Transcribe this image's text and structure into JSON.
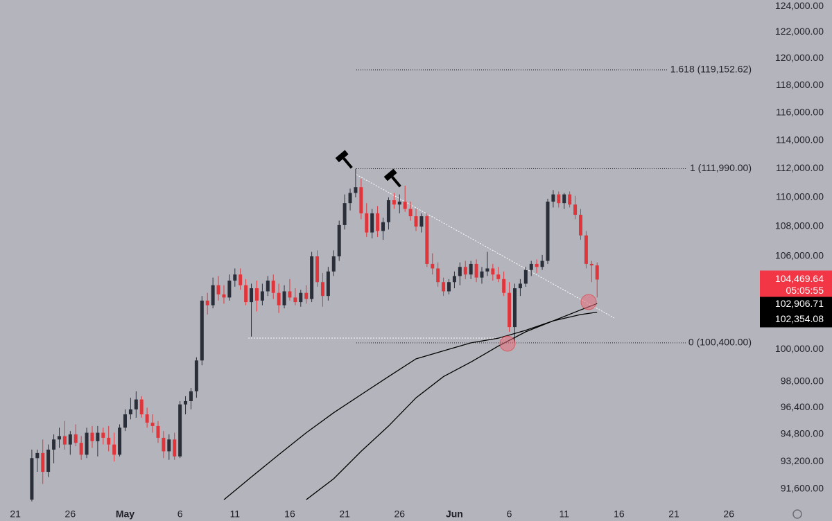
{
  "chart_data": {
    "type": "candlestick",
    "x": [
      0,
      1,
      2,
      3,
      4,
      5,
      6,
      7,
      8,
      9,
      10,
      11,
      12,
      13,
      14,
      15,
      16,
      17,
      18,
      19,
      20,
      21,
      22,
      23,
      24,
      25,
      26,
      27,
      28,
      29,
      30,
      31,
      32,
      33,
      34,
      35,
      36,
      37,
      38,
      39,
      40,
      41,
      42,
      43,
      44,
      45,
      46,
      47,
      48,
      49,
      50,
      51,
      52,
      53,
      54,
      55,
      56,
      57,
      58,
      59,
      60,
      61,
      62,
      63,
      64,
      65,
      66,
      67,
      68,
      69,
      70,
      71,
      72,
      73,
      74,
      75,
      76,
      77,
      78,
      79,
      80,
      81,
      82,
      83,
      84,
      85,
      86,
      87,
      88,
      89,
      90,
      91,
      92,
      93,
      94,
      95,
      96,
      97,
      98,
      99,
      100,
      101,
      102,
      103
    ],
    "ohlc": [
      [
        91000,
        93900,
        90900,
        93400
      ],
      [
        93400,
        93900,
        92600,
        93700
      ],
      [
        93700,
        94500,
        91900,
        92600
      ],
      [
        92600,
        94200,
        92300,
        93900
      ],
      [
        93900,
        94800,
        93100,
        94500
      ],
      [
        94500,
        95200,
        94000,
        94700
      ],
      [
        94700,
        95600,
        93900,
        94200
      ],
      [
        94200,
        95000,
        93600,
        94800
      ],
      [
        94800,
        95400,
        94100,
        94300
      ],
      [
        94300,
        94700,
        93300,
        93600
      ],
      [
        93600,
        95200,
        93400,
        94900
      ],
      [
        94900,
        95300,
        94000,
        94400
      ],
      [
        94400,
        95300,
        93500,
        94900
      ],
      [
        94900,
        95200,
        94200,
        94600
      ],
      [
        94600,
        95300,
        93800,
        94200
      ],
      [
        94200,
        94900,
        93200,
        93600
      ],
      [
        93600,
        95400,
        93500,
        95200
      ],
      [
        95200,
        96300,
        95000,
        96000
      ],
      [
        96000,
        97000,
        95700,
        96300
      ],
      [
        96300,
        97400,
        95800,
        96900
      ],
      [
        96900,
        97100,
        95800,
        96000
      ],
      [
        96000,
        96400,
        95200,
        95500
      ],
      [
        95500,
        96000,
        94900,
        95300
      ],
      [
        95300,
        95600,
        94300,
        94600
      ],
      [
        94600,
        95000,
        93400,
        93800
      ],
      [
        93800,
        94800,
        93300,
        94500
      ],
      [
        94500,
        94900,
        93300,
        93500
      ],
      [
        93500,
        96800,
        93400,
        96600
      ],
      [
        96600,
        97100,
        96000,
        96800
      ],
      [
        96800,
        97600,
        96300,
        97400
      ],
      [
        97400,
        99500,
        97000,
        99300
      ],
      [
        99300,
        103400,
        99000,
        103100
      ],
      [
        103100,
        103600,
        102200,
        102800
      ],
      [
        102800,
        104600,
        102600,
        104100
      ],
      [
        104100,
        104700,
        103100,
        103500
      ],
      [
        103500,
        104100,
        102900,
        103300
      ],
      [
        103300,
        104800,
        103100,
        104400
      ],
      [
        104400,
        105200,
        104000,
        104800
      ],
      [
        104800,
        105200,
        103800,
        104100
      ],
      [
        104100,
        104500,
        102800,
        103000
      ],
      [
        103000,
        104200,
        100800,
        103900
      ],
      [
        103900,
        104400,
        102400,
        103100
      ],
      [
        103100,
        104200,
        102800,
        103700
      ],
      [
        103700,
        104700,
        103400,
        104400
      ],
      [
        104400,
        104800,
        103200,
        103600
      ],
      [
        103600,
        104200,
        102300,
        102800
      ],
      [
        102800,
        104100,
        102600,
        103700
      ],
      [
        103700,
        104500,
        103100,
        103300
      ],
      [
        103300,
        103900,
        102800,
        103000
      ],
      [
        103000,
        103800,
        102700,
        103600
      ],
      [
        103600,
        104100,
        102900,
        103200
      ],
      [
        103200,
        106300,
        103000,
        106000
      ],
      [
        106000,
        106400,
        104000,
        104300
      ],
      [
        104300,
        104900,
        102700,
        103400
      ],
      [
        103400,
        105300,
        103100,
        105000
      ],
      [
        105000,
        106400,
        104700,
        106000
      ],
      [
        106000,
        108400,
        105700,
        108100
      ],
      [
        108100,
        110200,
        107800,
        109600
      ],
      [
        109600,
        110600,
        109100,
        110300
      ],
      [
        110300,
        111990,
        110000,
        110700
      ],
      [
        110700,
        111300,
        108500,
        108900
      ],
      [
        108900,
        109600,
        107300,
        107600
      ],
      [
        107600,
        109200,
        107200,
        108900
      ],
      [
        108900,
        109400,
        107300,
        107700
      ],
      [
        107700,
        108600,
        107100,
        108300
      ],
      [
        108300,
        110000,
        107800,
        109800
      ],
      [
        109800,
        110300,
        109200,
        109500
      ],
      [
        109500,
        110200,
        108900,
        109700
      ],
      [
        109700,
        110800,
        109000,
        109200
      ],
      [
        109200,
        109700,
        108400,
        108700
      ],
      [
        108700,
        109200,
        107700,
        108000
      ],
      [
        108000,
        108900,
        107600,
        108700
      ],
      [
        108700,
        108900,
        105300,
        105500
      ],
      [
        105500,
        106200,
        104800,
        105200
      ],
      [
        105200,
        105600,
        104000,
        104300
      ],
      [
        104300,
        104600,
        103400,
        103700
      ],
      [
        103700,
        104500,
        103500,
        104300
      ],
      [
        104300,
        105000,
        103900,
        104700
      ],
      [
        104700,
        105600,
        104100,
        105300
      ],
      [
        105300,
        105700,
        104500,
        104800
      ],
      [
        104800,
        105700,
        104500,
        105500
      ],
      [
        105500,
        105800,
        104300,
        104600
      ],
      [
        104600,
        105300,
        104200,
        105000
      ],
      [
        105000,
        106300,
        104700,
        105200
      ],
      [
        105200,
        105500,
        104400,
        104800
      ],
      [
        104800,
        105300,
        104300,
        104500
      ],
      [
        104500,
        105000,
        103400,
        103600
      ],
      [
        103600,
        104300,
        101100,
        101400
      ],
      [
        101400,
        104200,
        100400,
        103900
      ],
      [
        103900,
        104500,
        103400,
        104200
      ],
      [
        104200,
        105300,
        104000,
        105100
      ],
      [
        105100,
        105700,
        104700,
        105500
      ],
      [
        105500,
        105800,
        104900,
        105300
      ],
      [
        105300,
        106100,
        105100,
        105700
      ],
      [
        105700,
        109900,
        105500,
        109700
      ],
      [
        109700,
        110500,
        109300,
        110200
      ],
      [
        110200,
        110400,
        109300,
        109600
      ],
      [
        109600,
        110300,
        109200,
        110200
      ],
      [
        110200,
        110400,
        109300,
        109500
      ],
      [
        109500,
        110100,
        108500,
        108800
      ],
      [
        108800,
        109200,
        107100,
        107400
      ],
      [
        107400,
        107700,
        105200,
        105500
      ],
      [
        105500,
        105700,
        104300,
        105400
      ],
      [
        105400,
        105600,
        103300,
        104469.64
      ]
    ],
    "up_color": "#2a2e39",
    "down_color": "#e0353b",
    "series": [
      {
        "color": "#000000",
        "x": [
          35,
          40,
          45,
          50,
          55,
          60,
          65,
          70,
          75,
          80,
          85,
          90,
          95,
          100,
          103
        ],
        "values": [
          91000,
          92300,
          93600,
          94900,
          96100,
          97200,
          98300,
          99400,
          99900,
          100400,
          100700,
          101200,
          101800,
          102500,
          102906.71
        ],
        "value_labels": [
          null,
          null,
          null,
          null,
          null,
          null,
          null,
          null,
          null,
          null,
          null,
          null,
          null,
          null,
          "102,906.71"
        ]
      },
      {
        "color": "#000000",
        "x": [
          50,
          55,
          60,
          65,
          70,
          75,
          80,
          85,
          90,
          95,
          100,
          103
        ],
        "values": [
          91000,
          92200,
          93800,
          95300,
          97000,
          98300,
          99200,
          100200,
          101100,
          101800,
          102200,
          102354.08
        ],
        "value_labels": [
          null,
          null,
          null,
          null,
          null,
          null,
          null,
          null,
          null,
          null,
          null,
          "102,354.08"
        ]
      }
    ],
    "last_price": {
      "value": 104469.64,
      "label": "104,469.64"
    },
    "countdown": "05:05:55",
    "levels": [
      {
        "value": 119152.62,
        "label": "1.618 (119,152.62)"
      },
      {
        "value": 111990,
        "label": "1 (111,990.00)"
      },
      {
        "value": 100400,
        "label": "0 (100,400.00)"
      }
    ],
    "ylim": [
      90730,
      124490
    ],
    "log_scale": true,
    "yticks": [
      {
        "value": 91600,
        "label": "91,600.00"
      },
      {
        "value": 93200,
        "label": "93,200.00"
      },
      {
        "value": 94800,
        "label": "94,800.00"
      },
      {
        "value": 96400,
        "label": "96,400.00"
      },
      {
        "value": 98000,
        "label": "98,000.00"
      },
      {
        "value": 100000,
        "label": "100,000.00"
      },
      {
        "value": 106000,
        "label": "106,000.00"
      },
      {
        "value": 108000,
        "label": "108,000.00"
      },
      {
        "value": 110000,
        "label": "110,000.00"
      },
      {
        "value": 112000,
        "label": "112,000.00"
      },
      {
        "value": 114000,
        "label": "114,000.00"
      },
      {
        "value": 116000,
        "label": "116,000.00"
      },
      {
        "value": 118000,
        "label": "118,000.00"
      },
      {
        "value": 120000,
        "label": "120,000.00"
      },
      {
        "value": 122000,
        "label": "122,000.00"
      },
      {
        "value": 124000,
        "label": "124,000.00"
      }
    ],
    "xlim": [
      -5.8,
      131.9
    ],
    "xticks": [
      {
        "value": -3,
        "label": "21"
      },
      {
        "value": 7,
        "label": "26"
      },
      {
        "value": 17,
        "label": "May"
      },
      {
        "value": 27,
        "label": "6"
      },
      {
        "value": 37,
        "label": "11"
      },
      {
        "value": 47,
        "label": "16"
      },
      {
        "value": 57,
        "label": "21"
      },
      {
        "value": 67,
        "label": "26"
      },
      {
        "value": 77,
        "label": "Jun"
      },
      {
        "value": 87,
        "label": "6"
      },
      {
        "value": 97,
        "label": "11"
      },
      {
        "value": 107,
        "label": "16"
      },
      {
        "value": 117,
        "label": "21"
      },
      {
        "value": 127,
        "label": "26"
      }
    ]
  }
}
